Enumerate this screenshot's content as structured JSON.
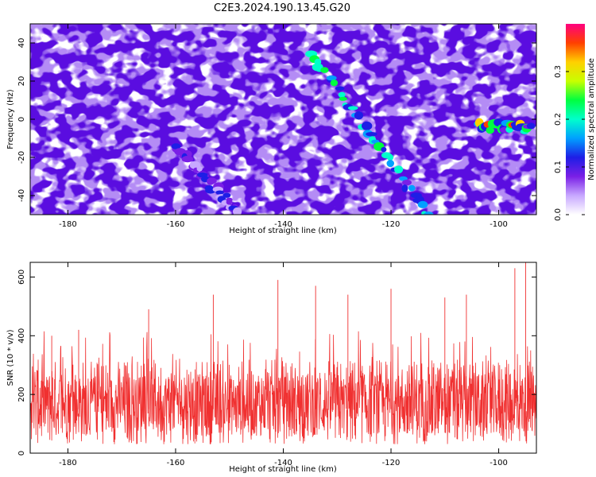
{
  "title": "C2E3.2024.190.13.45.G20",
  "chart_data": [
    {
      "type": "heatmap",
      "xlabel": "Height of straight line (km)",
      "ylabel": "Frequency (Hz)",
      "xlim": [
        -187,
        -93
      ],
      "ylim": [
        -50,
        50
      ],
      "xticks": [
        -180,
        -160,
        -140,
        -120,
        -100
      ],
      "xtick_labels": [
        "-180",
        "-160",
        "-140",
        "-120",
        "-100"
      ],
      "yticks": [
        -40,
        -20,
        0,
        20,
        40
      ],
      "ytick_labels": [
        "-40",
        "-20",
        "0",
        "20",
        "40"
      ],
      "colorbar": {
        "label": "Normalized spectral amplitude",
        "range": [
          0,
          0.4
        ],
        "ticks": [
          0,
          0.1,
          0.2,
          0.3
        ],
        "tick_labels": [
          "0.0",
          "0.1",
          "0.2",
          "0.3"
        ],
        "colormap": [
          "#ffffff",
          "#c8a8ff",
          "#7a1fe6",
          "#1e1ee6",
          "#00a0ff",
          "#00ffcc",
          "#00ff40",
          "#c8ff00",
          "#ffd000",
          "#ff4000",
          "#ff0080"
        ]
      },
      "features": [
        {
          "label": "diagonal streak",
          "x_start": -135,
          "y_start": 35,
          "x_end": -113,
          "y_end": -50,
          "peak_amplitude": 0.25
        },
        {
          "label": "diagonal streak",
          "x_start": -160,
          "y_start": -15,
          "x_end": -148,
          "y_end": -50,
          "peak_amplitude": 0.12
        },
        {
          "label": "band",
          "x_start": -104,
          "x_end": -94,
          "y": -4,
          "peak_amplitude": 0.38
        }
      ],
      "grid": false
    },
    {
      "type": "line",
      "xlabel": "Height of straight line (km)",
      "ylabel": "SNR (10 * v/v)",
      "xlim": [
        -187,
        -93
      ],
      "ylim": [
        0,
        650
      ],
      "xticks": [
        -180,
        -160,
        -140,
        -120,
        -100
      ],
      "xtick_labels": [
        "-180",
        "-160",
        "-140",
        "-120",
        "-100"
      ],
      "yticks": [
        0,
        200,
        400,
        600
      ],
      "ytick_labels": [
        "0",
        "200",
        "400",
        "600"
      ],
      "color": "#f03030",
      "series_summary": {
        "baseline": 150,
        "typical_range": [
          20,
          330
        ],
        "max": 650,
        "max_x": -95
      },
      "peaks": [
        {
          "x": -183,
          "y": 400
        },
        {
          "x": -178,
          "y": 420
        },
        {
          "x": -165,
          "y": 490
        },
        {
          "x": -153,
          "y": 540
        },
        {
          "x": -141,
          "y": 590
        },
        {
          "x": -134,
          "y": 570
        },
        {
          "x": -128,
          "y": 540
        },
        {
          "x": -120,
          "y": 560
        },
        {
          "x": -110,
          "y": 530
        },
        {
          "x": -106,
          "y": 540
        },
        {
          "x": -97,
          "y": 630
        },
        {
          "x": -95,
          "y": 650
        }
      ],
      "grid": false
    }
  ]
}
